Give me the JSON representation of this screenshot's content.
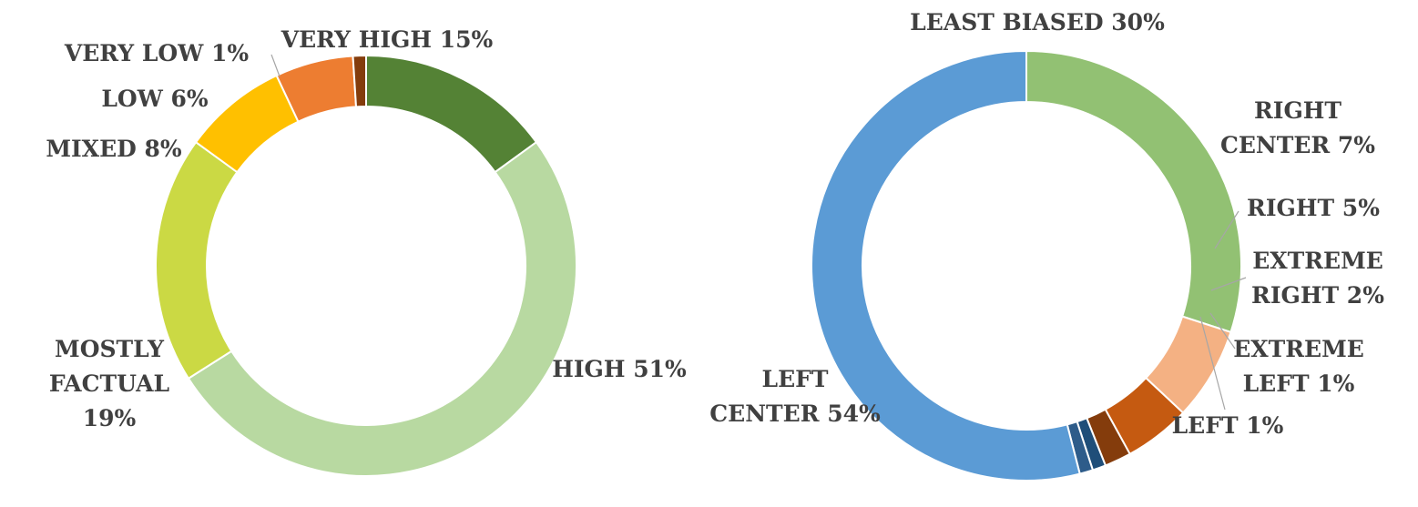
{
  "chart_data": [
    {
      "type": "donut",
      "title": "",
      "legend": "none",
      "start_angle_deg": 0,
      "direction": "clockwise",
      "slices": [
        {
          "label": "VERY HIGH",
          "value_label": "15%",
          "value": 15,
          "color": "#548235"
        },
        {
          "label": "HIGH",
          "value_label": "51%",
          "value": 51,
          "color": "#B8D9A1"
        },
        {
          "label": "MOSTLY FACTUAL",
          "value_label": "19%",
          "value": 19,
          "color": "#CBD944"
        },
        {
          "label": "MIXED",
          "value_label": "8%",
          "value": 8,
          "color": "#FFC000"
        },
        {
          "label": "LOW",
          "value_label": "6%",
          "value": 6,
          "color": "#ED7D31"
        },
        {
          "label": "VERY LOW",
          "value_label": "1%",
          "value": 1,
          "color": "#843C0C"
        }
      ],
      "data_labels": [
        {
          "slice": 0,
          "lines": [
            "VERY HIGH 15%"
          ]
        },
        {
          "slice": 1,
          "lines": [
            "HIGH 51%"
          ]
        },
        {
          "slice": 2,
          "lines": [
            "MOSTLY",
            "FACTUAL",
            "19%"
          ]
        },
        {
          "slice": 3,
          "lines": [
            "MIXED 8%"
          ]
        },
        {
          "slice": 4,
          "lines": [
            "LOW 6%"
          ]
        },
        {
          "slice": 5,
          "lines": [
            "VERY LOW 1%"
          ]
        }
      ]
    },
    {
      "type": "donut",
      "title": "",
      "legend": "none",
      "start_angle_deg": 0,
      "direction": "clockwise",
      "slices": [
        {
          "label": "LEAST BIASED",
          "value_label": "30%",
          "value": 30,
          "color": "#92C173"
        },
        {
          "label": "RIGHT CENTER",
          "value_label": "7%",
          "value": 7,
          "color": "#F4B183"
        },
        {
          "label": "RIGHT",
          "value_label": "5%",
          "value": 5,
          "color": "#C55A11"
        },
        {
          "label": "EXTREME RIGHT",
          "value_label": "2%",
          "value": 2,
          "color": "#843C0C"
        },
        {
          "label": "EXTREME LEFT",
          "value_label": "1%",
          "value": 1,
          "color": "#1F4E79"
        },
        {
          "label": "LEFT",
          "value_label": "1%",
          "value": 1,
          "color": "#2E5C8A"
        },
        {
          "label": "LEFT CENTER",
          "value_label": "54%",
          "value": 54,
          "color": "#5B9BD5"
        }
      ],
      "data_labels": [
        {
          "slice": 0,
          "lines": [
            "LEAST BIASED 30%"
          ]
        },
        {
          "slice": 1,
          "lines": [
            "RIGHT",
            "CENTER 7%"
          ]
        },
        {
          "slice": 2,
          "lines": [
            "RIGHT 5%"
          ]
        },
        {
          "slice": 3,
          "lines": [
            "EXTREME",
            "RIGHT 2%"
          ]
        },
        {
          "slice": 4,
          "lines": [
            "EXTREME",
            "LEFT 1%"
          ]
        },
        {
          "slice": 5,
          "lines": [
            "LEFT 1%"
          ]
        },
        {
          "slice": 6,
          "lines": [
            "LEFT",
            "CENTER 54%"
          ]
        }
      ]
    }
  ]
}
